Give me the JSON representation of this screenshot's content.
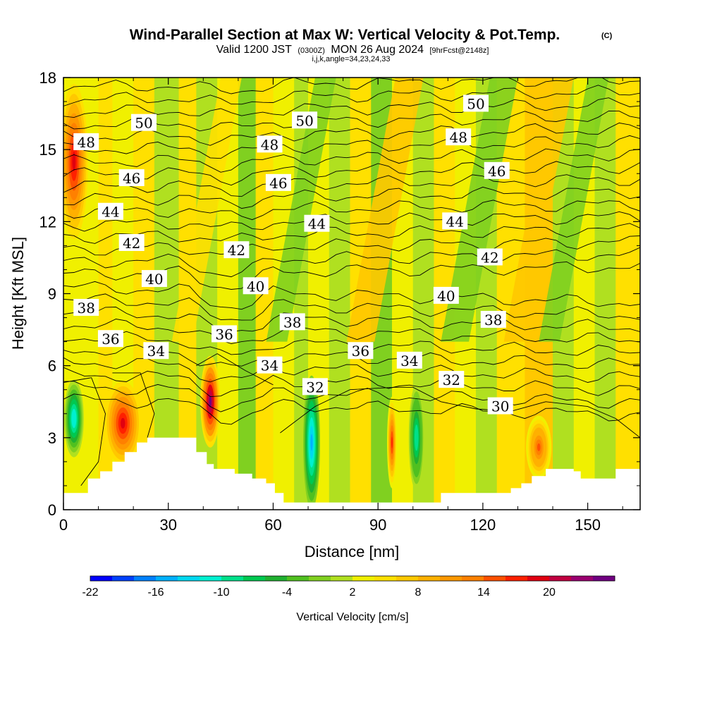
{
  "title": {
    "main": "Wind-Parallel Section at Max W: Vertical Velocity & Pot.Temp.",
    "copyright": "(C)",
    "sub_valid": "Valid 1200 JST",
    "sub_utc": "(0300Z)",
    "sub_date": "MON 26 Aug 2024",
    "sub_fcst": "[9hrFcst@2148z]",
    "indices": "i,j,k,angle=34,23,24,33"
  },
  "chart_data": {
    "type": "contour",
    "xlabel": "Distance [nm]",
    "ylabel": "Height [Kft MSL]",
    "xlim": [
      0,
      165
    ],
    "ylim": [
      0,
      18
    ],
    "x_ticks": [
      0,
      30,
      60,
      90,
      120,
      150
    ],
    "y_ticks": [
      0,
      3,
      6,
      9,
      12,
      15,
      18
    ],
    "colorbar": {
      "title": "Vertical Velocity [cm/s]",
      "ticks": [
        "-22",
        "-16",
        "-10",
        "-4",
        "2",
        "8",
        "14",
        "20"
      ],
      "colors": [
        "#0000ff",
        "#0040ff",
        "#0080ff",
        "#00b0ff",
        "#00d8f0",
        "#00f0d0",
        "#00e08a",
        "#00c850",
        "#20b030",
        "#50c020",
        "#80d020",
        "#b0e020",
        "#f0f000",
        "#ffe000",
        "#ffc800",
        "#ffb000",
        "#ff9800",
        "#ff8000",
        "#ff5000",
        "#ff2000",
        "#e00010",
        "#c00040",
        "#9a0070",
        "#700080"
      ]
    },
    "isentropes_labels": [
      {
        "value": "50",
        "x": 23,
        "y": 16.1
      },
      {
        "value": "50",
        "x": 69,
        "y": 16.2
      },
      {
        "value": "50",
        "x": 118,
        "y": 16.9
      },
      {
        "value": "48",
        "x": 6.5,
        "y": 15.3
      },
      {
        "value": "48",
        "x": 59,
        "y": 15.2
      },
      {
        "value": "48",
        "x": 113,
        "y": 15.5
      },
      {
        "value": "46",
        "x": 19.5,
        "y": 13.8
      },
      {
        "value": "46",
        "x": 61.5,
        "y": 13.6
      },
      {
        "value": "46",
        "x": 124,
        "y": 14.1
      },
      {
        "value": "44",
        "x": 13.5,
        "y": 12.4
      },
      {
        "value": "44",
        "x": 72.5,
        "y": 11.9
      },
      {
        "value": "44",
        "x": 112,
        "y": 12.0
      },
      {
        "value": "42",
        "x": 19.5,
        "y": 11.1
      },
      {
        "value": "42",
        "x": 49.5,
        "y": 10.8
      },
      {
        "value": "42",
        "x": 122,
        "y": 10.5
      },
      {
        "value": "40",
        "x": 26,
        "y": 9.6
      },
      {
        "value": "40",
        "x": 55,
        "y": 9.3
      },
      {
        "value": "40",
        "x": 109.5,
        "y": 8.9
      },
      {
        "value": "38",
        "x": 6.5,
        "y": 8.4
      },
      {
        "value": "38",
        "x": 65.5,
        "y": 7.8
      },
      {
        "value": "38",
        "x": 123,
        "y": 7.9
      },
      {
        "value": "36",
        "x": 13.5,
        "y": 7.1
      },
      {
        "value": "36",
        "x": 46,
        "y": 7.3
      },
      {
        "value": "36",
        "x": 85,
        "y": 6.6
      },
      {
        "value": "34",
        "x": 26.5,
        "y": 6.6
      },
      {
        "value": "34",
        "x": 59,
        "y": 6.0
      },
      {
        "value": "34",
        "x": 99,
        "y": 6.2
      },
      {
        "value": "32",
        "x": 72,
        "y": 5.1
      },
      {
        "value": "32",
        "x": 111,
        "y": 5.4
      },
      {
        "value": "30",
        "x": 125,
        "y": 4.3
      }
    ],
    "updraft_centers_cms": [
      {
        "x": 3,
        "y": 14.5,
        "w": 17
      },
      {
        "x": 17,
        "y": 3.6,
        "w": 16
      },
      {
        "x": 42,
        "y": 4.5,
        "w": 22
      },
      {
        "x": 94,
        "y": 2.8,
        "w": 14
      },
      {
        "x": 136,
        "y": 2.6,
        "w": 12
      }
    ],
    "downdraft_centers_cms": [
      {
        "x": 3,
        "y": 3.8,
        "w": -14
      },
      {
        "x": 71,
        "y": 2.8,
        "w": -18
      },
      {
        "x": 101,
        "y": 3.0,
        "w": -12
      }
    ],
    "terrain": [
      [
        0,
        0.7
      ],
      [
        7,
        0.7
      ],
      [
        7,
        1.3
      ],
      [
        10.5,
        1.3
      ],
      [
        10.5,
        1.6
      ],
      [
        14,
        1.6
      ],
      [
        14,
        2.0
      ],
      [
        17.5,
        2.0
      ],
      [
        17.5,
        2.4
      ],
      [
        21,
        2.4
      ],
      [
        21,
        2.8
      ],
      [
        24,
        2.8
      ],
      [
        24,
        3.0
      ],
      [
        38,
        3.0
      ],
      [
        38,
        2.4
      ],
      [
        41,
        2.4
      ],
      [
        41,
        1.9
      ],
      [
        43,
        1.9
      ],
      [
        43,
        1.7
      ],
      [
        49,
        1.7
      ],
      [
        49,
        1.5
      ],
      [
        54,
        1.5
      ],
      [
        54,
        1.3
      ],
      [
        58,
        1.3
      ],
      [
        58,
        1.1
      ],
      [
        60.5,
        1.1
      ],
      [
        60.5,
        0.7
      ],
      [
        63,
        0.7
      ],
      [
        63,
        0.3
      ],
      [
        68,
        0.3
      ],
      [
        68,
        0.3
      ],
      [
        108,
        0.3
      ],
      [
        108,
        0.7
      ],
      [
        128,
        0.7
      ],
      [
        128,
        0.9
      ],
      [
        131,
        0.9
      ],
      [
        131,
        1.1
      ],
      [
        134,
        1.1
      ],
      [
        134,
        1.4
      ],
      [
        138,
        1.4
      ],
      [
        138,
        1.7
      ],
      [
        146,
        1.7
      ],
      [
        146,
        1.6
      ],
      [
        148,
        1.6
      ],
      [
        148,
        1.3
      ],
      [
        158,
        1.3
      ],
      [
        158,
        1.7
      ],
      [
        165,
        1.7
      ],
      [
        165,
        0
      ],
      [
        0,
        0
      ]
    ]
  }
}
